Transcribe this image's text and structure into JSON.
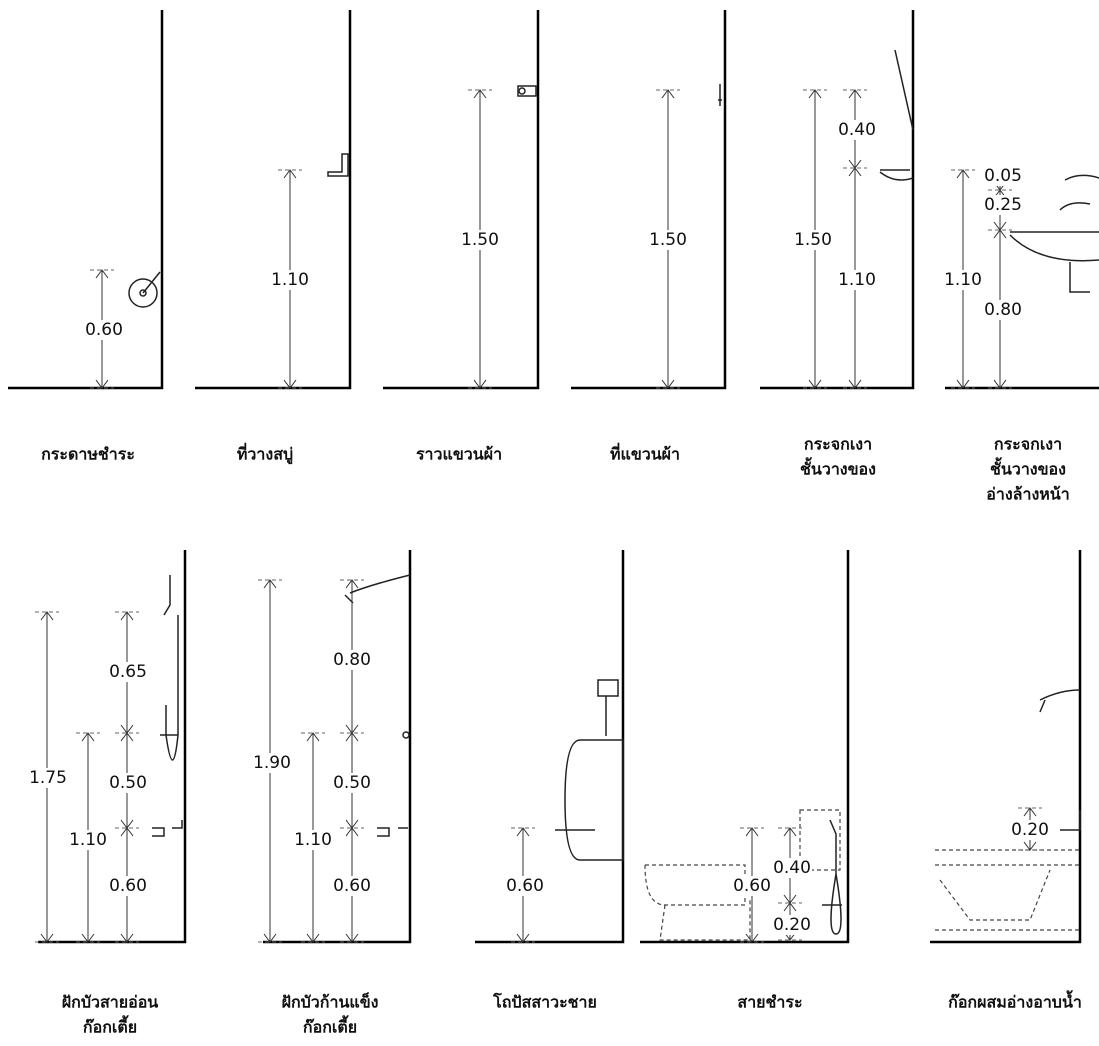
{
  "panels": [
    {
      "label": [
        "กระดาษชำระ"
      ],
      "dims": [
        "0.60"
      ]
    },
    {
      "label": [
        "ที่วางสบู่"
      ],
      "dims": [
        "1.10"
      ]
    },
    {
      "label": [
        "ราวแขวนผ้า"
      ],
      "dims": [
        "1.50"
      ]
    },
    {
      "label": [
        "ที่แขวนผ้า"
      ],
      "dims": [
        "1.50"
      ]
    },
    {
      "label": [
        "กระจกเงา",
        "ชั้นวางของ"
      ],
      "dims": [
        "1.50",
        "0.40",
        "1.10"
      ]
    },
    {
      "label": [
        "กระจกเงา",
        "ชั้นวางของ",
        "อ่างล้างหน้า"
      ],
      "dims": [
        "1.10",
        "0.05",
        "0.25",
        "0.80"
      ]
    },
    {
      "label": [
        "ฝักบัวสายอ่อน",
        "ก๊อกเตี้ย"
      ],
      "dims": [
        "1.75",
        "1.10",
        "0.65",
        "0.50",
        "0.60"
      ]
    },
    {
      "label": [
        "ฝักบัวก้านแข็ง",
        "ก๊อกเตี้ย"
      ],
      "dims": [
        "1.90",
        "1.10",
        "0.80",
        "0.50",
        "0.60"
      ]
    },
    {
      "label": [
        "โถปัสสาวะชาย"
      ],
      "dims": [
        "0.60"
      ]
    },
    {
      "label": [
        "สายชำระ"
      ],
      "dims": [
        "0.60",
        "0.40",
        "0.20"
      ]
    },
    {
      "label": [
        "ก๊อกผสมอ่างอาบน้ำ"
      ],
      "dims": [
        "0.20"
      ]
    }
  ]
}
